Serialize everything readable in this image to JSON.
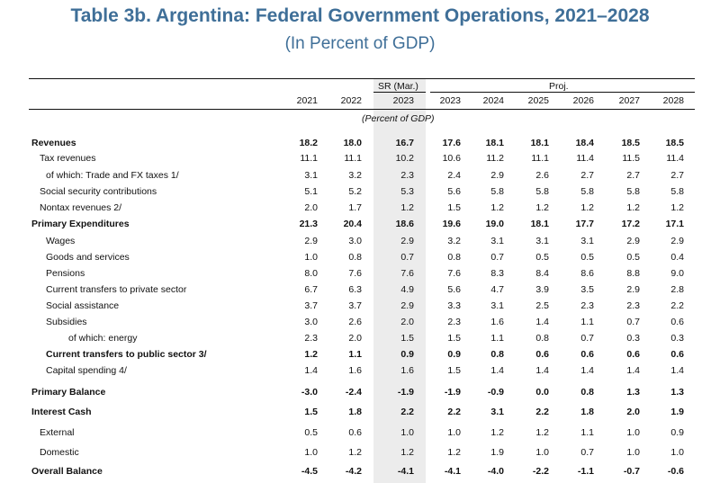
{
  "title": "Table 3b. Argentina: Federal Government Operations, 2021–2028",
  "subtitle": "(In Percent of GDP)",
  "header": {
    "sr_label": "SR (Mar.)",
    "proj_label": "Proj.",
    "years": [
      "2021",
      "2022",
      "2023",
      "2023",
      "2024",
      "2025",
      "2026",
      "2027",
      "2028"
    ],
    "units": "(Percent of GDP)"
  },
  "rows": [
    {
      "label": "Revenues",
      "indent": 0,
      "bold": true,
      "values": [
        "18.2",
        "18.0",
        "16.7",
        "17.6",
        "18.1",
        "18.1",
        "18.4",
        "18.5",
        "18.5"
      ]
    },
    {
      "label": "Tax revenues",
      "indent": 1,
      "bold": false,
      "values": [
        "11.1",
        "11.1",
        "10.2",
        "10.6",
        "11.2",
        "11.1",
        "11.4",
        "11.5",
        "11.4"
      ]
    },
    {
      "label": "of which: Trade and FX taxes 1/",
      "indent": 2,
      "bold": false,
      "values": [
        "3.1",
        "3.2",
        "2.3",
        "2.4",
        "2.9",
        "2.6",
        "2.7",
        "2.7",
        "2.7"
      ]
    },
    {
      "label": "Social security contributions",
      "indent": 1,
      "bold": false,
      "values": [
        "5.1",
        "5.2",
        "5.3",
        "5.6",
        "5.8",
        "5.8",
        "5.8",
        "5.8",
        "5.8"
      ]
    },
    {
      "label": "Nontax revenues 2/",
      "indent": 1,
      "bold": false,
      "values": [
        "2.0",
        "1.7",
        "1.2",
        "1.5",
        "1.2",
        "1.2",
        "1.2",
        "1.2",
        "1.2"
      ]
    },
    {
      "label": "Primary Expenditures",
      "indent": 0,
      "bold": true,
      "values": [
        "21.3",
        "20.4",
        "18.6",
        "19.6",
        "19.0",
        "18.1",
        "17.7",
        "17.2",
        "17.1"
      ]
    },
    {
      "label": "Wages",
      "indent": 2,
      "bold": false,
      "values": [
        "2.9",
        "3.0",
        "2.9",
        "3.2",
        "3.1",
        "3.1",
        "3.1",
        "2.9",
        "2.9"
      ]
    },
    {
      "label": "Goods and services",
      "indent": 2,
      "bold": false,
      "values": [
        "1.0",
        "0.8",
        "0.7",
        "0.8",
        "0.7",
        "0.5",
        "0.5",
        "0.5",
        "0.4"
      ]
    },
    {
      "label": "Pensions",
      "indent": 2,
      "bold": false,
      "values": [
        "8.0",
        "7.6",
        "7.6",
        "7.6",
        "8.3",
        "8.4",
        "8.6",
        "8.8",
        "9.0"
      ]
    },
    {
      "label": "Current transfers to private sector",
      "indent": 2,
      "bold": false,
      "values": [
        "6.7",
        "6.3",
        "4.9",
        "5.6",
        "4.7",
        "3.9",
        "3.5",
        "2.9",
        "2.8"
      ]
    },
    {
      "label": "Social assistance",
      "indent": 3,
      "bold": false,
      "values": [
        "3.7",
        "3.7",
        "2.9",
        "3.3",
        "3.1",
        "2.5",
        "2.3",
        "2.3",
        "2.2"
      ]
    },
    {
      "label": "Subsidies",
      "indent": 3,
      "bold": false,
      "values": [
        "3.0",
        "2.6",
        "2.0",
        "2.3",
        "1.6",
        "1.4",
        "1.1",
        "0.7",
        "0.6"
      ]
    },
    {
      "label": "of which: energy",
      "indent": 4,
      "bold": false,
      "values": [
        "2.3",
        "2.0",
        "1.5",
        "1.5",
        "1.1",
        "0.8",
        "0.7",
        "0.3",
        "0.3"
      ]
    },
    {
      "label": "Current transfers to public sector 3/",
      "indent": 2,
      "bold": true,
      "values": [
        "1.2",
        "1.1",
        "0.9",
        "0.9",
        "0.8",
        "0.6",
        "0.6",
        "0.6",
        "0.6"
      ]
    },
    {
      "label": "Capital spending 4/",
      "indent": 2,
      "bold": false,
      "values": [
        "1.4",
        "1.6",
        "1.6",
        "1.5",
        "1.4",
        "1.4",
        "1.4",
        "1.4",
        "1.4"
      ]
    },
    {
      "label": "Primary Balance",
      "indent": 0,
      "bold": true,
      "values": [
        "-3.0",
        "-2.4",
        "-1.9",
        "-1.9",
        "-0.9",
        "0.0",
        "0.8",
        "1.3",
        "1.3"
      ]
    },
    {
      "label": "Interest Cash",
      "indent": 0,
      "bold": true,
      "values": [
        "1.5",
        "1.8",
        "2.2",
        "2.2",
        "3.1",
        "2.2",
        "1.8",
        "2.0",
        "1.9"
      ]
    },
    {
      "label": "External",
      "indent": 1,
      "bold": false,
      "values": [
        "0.5",
        "0.6",
        "1.0",
        "1.0",
        "1.2",
        "1.2",
        "1.1",
        "1.0",
        "0.9"
      ]
    },
    {
      "label": "Domestic",
      "indent": 1,
      "bold": false,
      "values": [
        "1.0",
        "1.2",
        "1.2",
        "1.2",
        "1.9",
        "1.0",
        "0.7",
        "1.0",
        "1.0"
      ]
    },
    {
      "label": "Overall Balance",
      "indent": 0,
      "bold": true,
      "values": [
        "-4.5",
        "-4.2",
        "-4.1",
        "-4.1",
        "-4.0",
        "-2.2",
        "-1.1",
        "-0.7",
        "-0.6"
      ]
    }
  ]
}
